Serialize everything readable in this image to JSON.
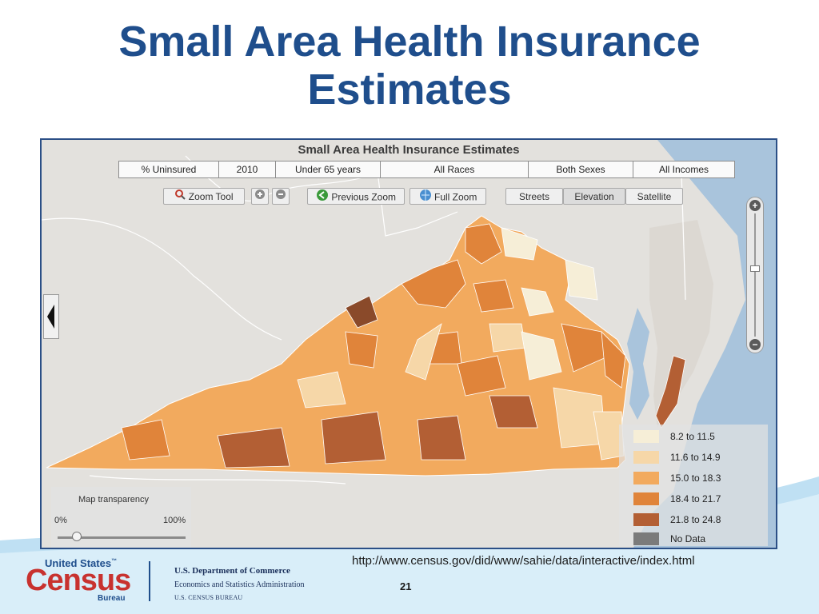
{
  "slide": {
    "title_line1": "Small Area Health Insurance",
    "title_line2": "Estimates",
    "url": "http://www.census.gov/did/www/sahie/data/interactive/index.html",
    "page_number": "21"
  },
  "map": {
    "title": "Small Area Health Insurance Estimates",
    "filters": [
      "% Uninsured",
      "2010",
      "Under 65 years",
      "All Races",
      "Both Sexes",
      "All Incomes"
    ],
    "toolbar": {
      "zoom_tool": "Zoom Tool",
      "previous_zoom": "Previous Zoom",
      "full_zoom": "Full Zoom",
      "streets": "Streets",
      "elevation": "Elevation",
      "satellite": "Satellite"
    },
    "zoom_in_symbol": "+",
    "zoom_out_symbol": "−",
    "transparency": {
      "label": "Map transparency",
      "min_label": "0%",
      "max_label": "100%",
      "value": 0.15
    },
    "zoom_level": 0.55,
    "legend": [
      {
        "label": "8.2 to 11.5",
        "color": "#f6eed7"
      },
      {
        "label": "11.6 to 14.9",
        "color": "#f6d7a8"
      },
      {
        "label": "15.0 to 18.3",
        "color": "#f2aa5e"
      },
      {
        "label": "18.4 to 21.7",
        "color": "#e0843a"
      },
      {
        "label": "21.8 to 24.8",
        "color": "#b35f34"
      },
      {
        "label": "No Data",
        "color": "#7b7b7b"
      }
    ]
  },
  "footer": {
    "census_line1": "United States",
    "census_tm": "™",
    "census_line2": "Census",
    "census_line3": "Bureau",
    "dept_line1": "U.S. Department of Commerce",
    "dept_line2": "Economics and Statistics Administration",
    "dept_line3": "U.S. CENSUS BUREAU"
  },
  "colors": {
    "title": "#1f4e8c",
    "frame_border": "#2b4f86",
    "water": "#a9c4dc",
    "census_red": "#c8322f"
  }
}
